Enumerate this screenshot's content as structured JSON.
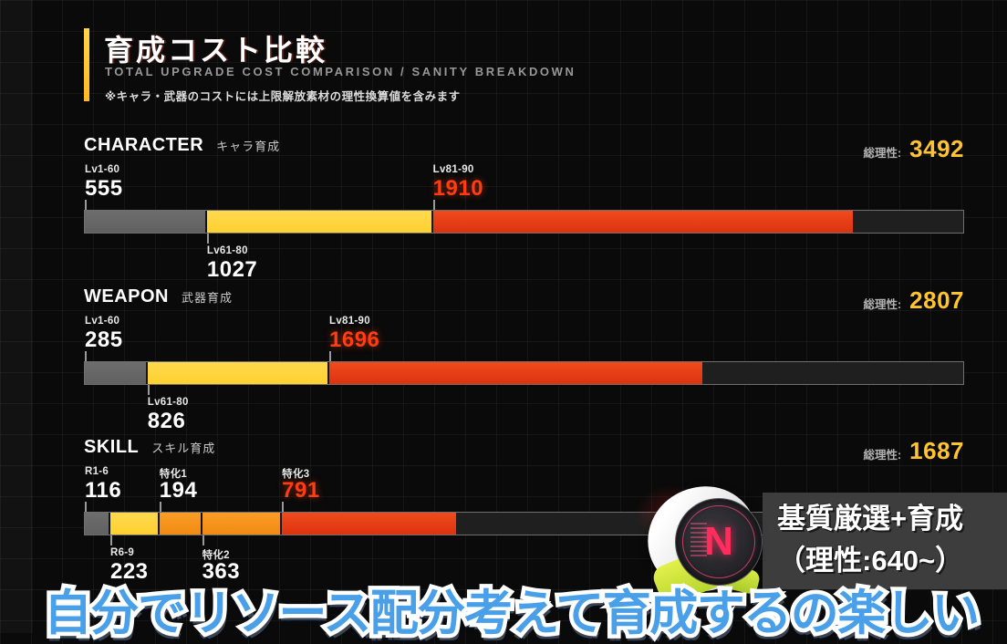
{
  "header": {
    "title": "育成コスト比較",
    "subtitle": "TOTAL UPGRADE COST COMPARISON / SANITY BREAKDOWN",
    "note": "※キャラ・武器のコストには上限解放素材の理性換算値を含みます"
  },
  "total_label": "総理性:",
  "colors": {
    "accent_yellow": "#ffc430",
    "bar_gray": "#666666",
    "bar_yellow": "#ffd43c",
    "bar_orange": "#f8941e",
    "bar_red": "#e83d14",
    "value_red": "#ff3d10",
    "caption_blue": "#4aa0e8"
  },
  "chart_data": {
    "type": "bar",
    "orientation": "horizontal-stacked",
    "axis_max": 4000,
    "rows": [
      {
        "name_en": "CHARACTER",
        "name_jp": "キャラ育成",
        "total": 3492,
        "segments": [
          {
            "label": "Lv1-60",
            "value": 555,
            "color": "gray",
            "label_pos": "above",
            "value_red": false
          },
          {
            "label": "Lv61-80",
            "value": 1027,
            "color": "yellow",
            "label_pos": "below",
            "value_red": false
          },
          {
            "label": "Lv81-90",
            "value": 1910,
            "color": "red",
            "label_pos": "above",
            "value_red": true
          }
        ]
      },
      {
        "name_en": "WEAPON",
        "name_jp": "武器育成",
        "total": 2807,
        "segments": [
          {
            "label": "Lv1-60",
            "value": 285,
            "color": "gray",
            "label_pos": "above",
            "value_red": false
          },
          {
            "label": "Lv61-80",
            "value": 826,
            "color": "yellow",
            "label_pos": "below",
            "value_red": false
          },
          {
            "label": "Lv81-90",
            "value": 1696,
            "color": "red",
            "label_pos": "above",
            "value_red": true
          }
        ]
      },
      {
        "name_en": "SKILL",
        "name_jp": "スキル育成",
        "total": 1687,
        "segments": [
          {
            "label": "R1-6",
            "value": 116,
            "color": "gray",
            "label_pos": "above",
            "value_red": false
          },
          {
            "label": "R6-9",
            "value": 223,
            "color": "yellow",
            "label_pos": "below",
            "value_red": false
          },
          {
            "label": "特化1",
            "value": 194,
            "color": "orange",
            "label_pos": "above",
            "value_red": false
          },
          {
            "label": "特化2",
            "value": 363,
            "color": "orange",
            "label_pos": "below",
            "value_red": false
          },
          {
            "label": "特化3",
            "value": 791,
            "color": "red",
            "label_pos": "above",
            "value_red": true
          }
        ]
      }
    ]
  },
  "badge": {
    "line1": "基質厳選+育成",
    "line2": "（理性:640~）",
    "icon_letter": "N"
  },
  "caption": "自分でリソース配分考えて育成するの楽しい"
}
